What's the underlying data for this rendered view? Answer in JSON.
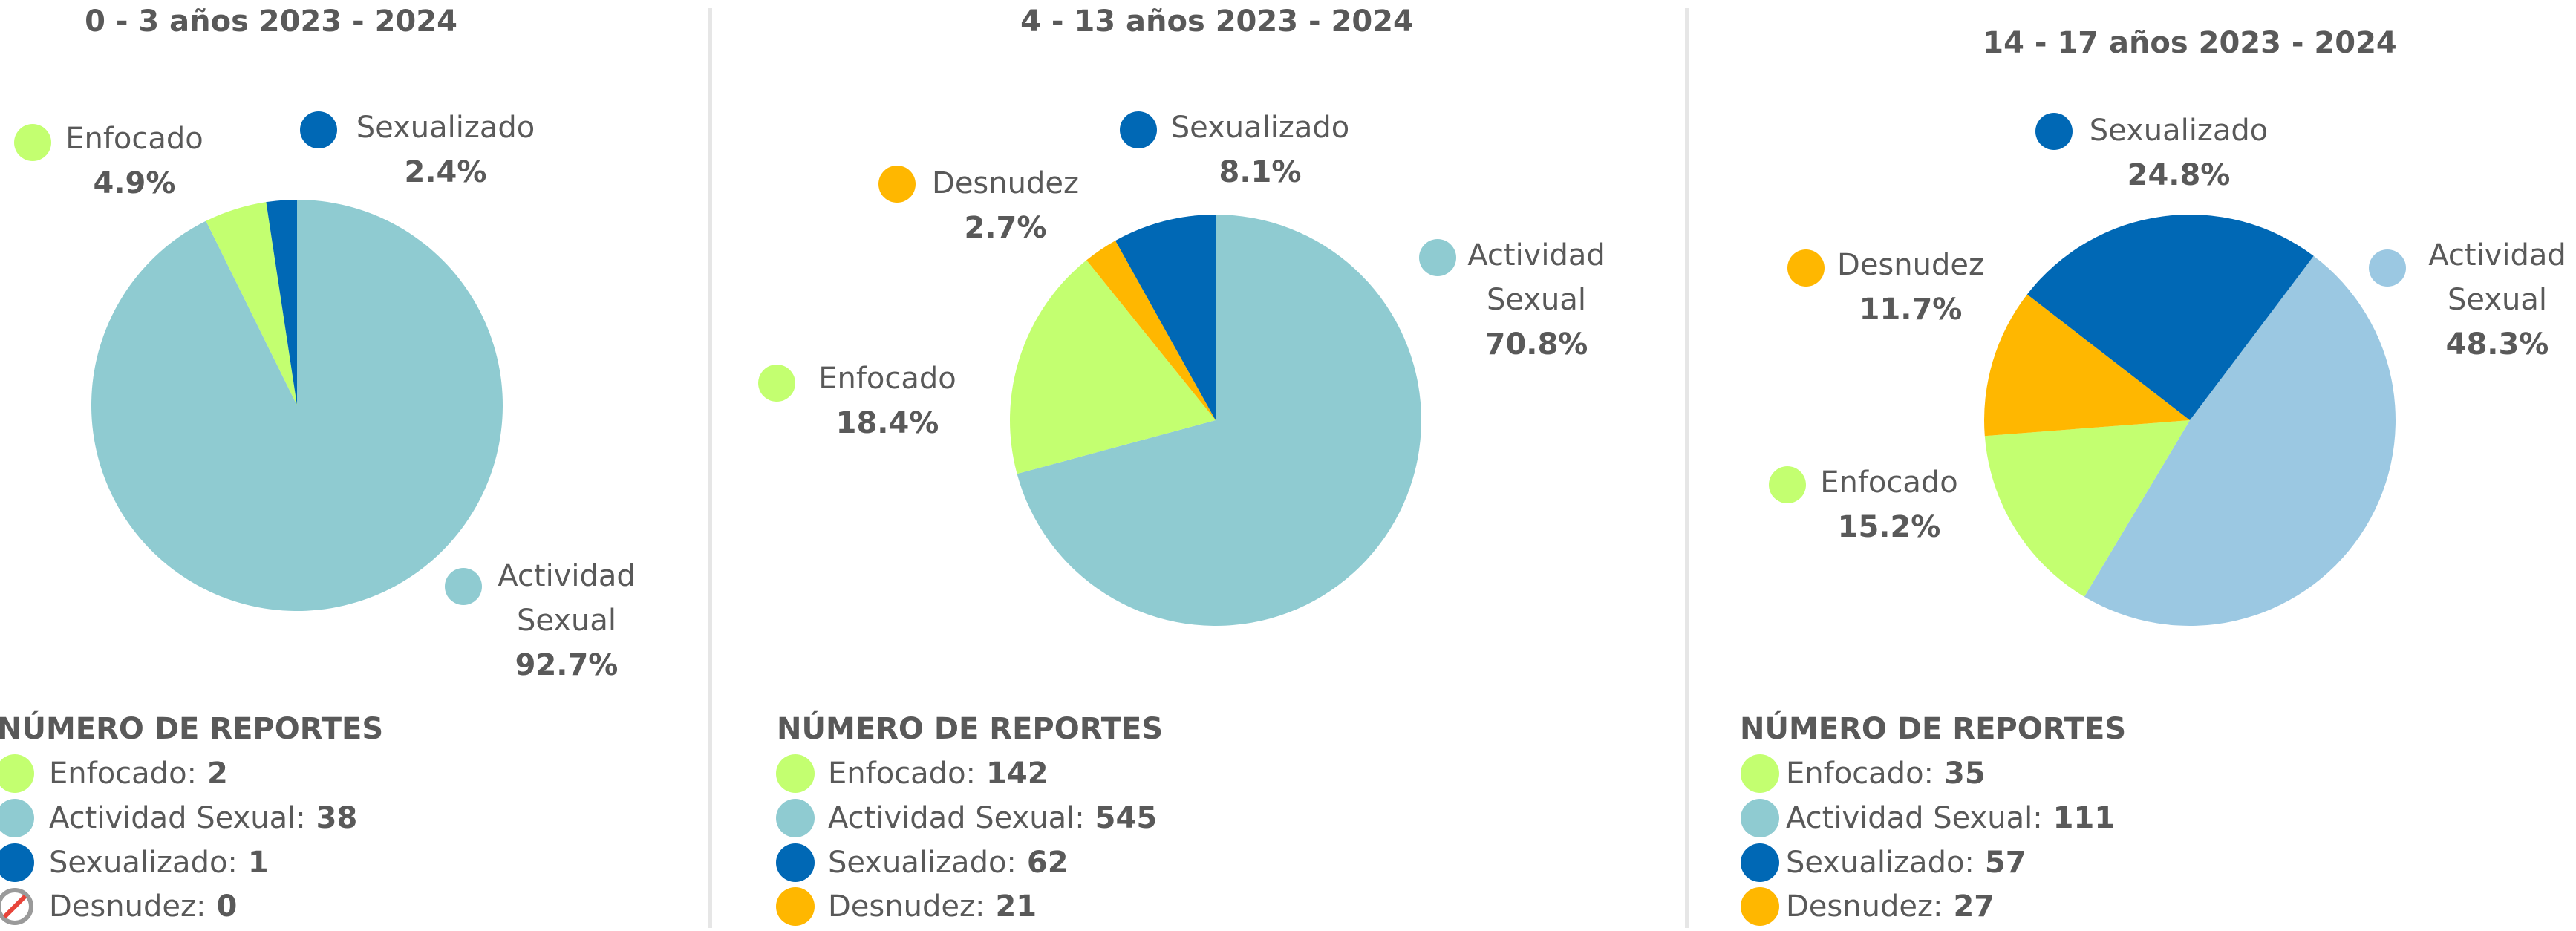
{
  "chart_data": [
    {
      "type": "pie",
      "title": "0 - 3 años 2023 - 2024",
      "categories": [
        "Actividad Sexual",
        "Enfocado",
        "Sexualizado"
      ],
      "values": [
        92.7,
        4.9,
        2.4
      ],
      "value_labels": [
        "92.7%",
        "4.9%",
        "2.4%"
      ],
      "colors": [
        "#8fcbd1",
        "#c3ff70",
        "#0068b5"
      ],
      "reports": {
        "title": "NÚMERO DE REPORTES",
        "items": [
          {
            "label": "Enfocado:",
            "value": 2,
            "color": "#c3ff70"
          },
          {
            "label": "Actividad Sexual:",
            "value": 38,
            "color": "#8fcbd1"
          },
          {
            "label": "Sexualizado:",
            "value": 1,
            "color": "#0068b5"
          },
          {
            "label": "Desnudez:",
            "value": 0
          }
        ]
      }
    },
    {
      "type": "pie",
      "title": "4 - 13 años 2023 - 2024",
      "categories": [
        "Actividad Sexual",
        "Enfocado",
        "Desnudez",
        "Sexualizado"
      ],
      "values": [
        70.8,
        18.4,
        2.7,
        8.1
      ],
      "value_labels": [
        "70.8%",
        "18.4%",
        "2.7%",
        "8.1%"
      ],
      "colors": [
        "#8fcbd1",
        "#c3ff70",
        "#ffb700",
        "#0068b5"
      ],
      "reports": {
        "title": "NÚMERO DE REPORTES",
        "items": [
          {
            "label": "Enfocado:",
            "value": 142,
            "color": "#c3ff70"
          },
          {
            "label": "Actividad Sexual:",
            "value": 545,
            "color": "#8fcbd1"
          },
          {
            "label": "Sexualizado:",
            "value": 62,
            "color": "#0068b5"
          },
          {
            "label": "Desnudez:",
            "value": 21,
            "color": "#ffb700"
          }
        ]
      }
    },
    {
      "type": "pie",
      "title": "14 - 17 años 2023 - 2024",
      "categories": [
        "Actividad Sexual",
        "Enfocado",
        "Desnudez",
        "Sexualizado"
      ],
      "values": [
        48.3,
        15.2,
        11.7,
        24.8
      ],
      "value_labels": [
        "48.3%",
        "15.2%",
        "11.7%",
        "24.8%"
      ],
      "colors": [
        "#9bc8e2",
        "#c3ff70",
        "#ffb700",
        "#0068b5"
      ],
      "reports": {
        "title": "NÚMERO DE REPORTES",
        "items": [
          {
            "label": "Enfocado:",
            "value": 35,
            "color": "#c3ff70"
          },
          {
            "label": "Actividad Sexual:",
            "value": 111,
            "color": "#8fcbd1"
          },
          {
            "label": "Sexualizado:",
            "value": 57,
            "color": "#0068b5"
          },
          {
            "label": "Desnudez:",
            "value": 27,
            "color": "#ffb700"
          }
        ]
      }
    }
  ]
}
